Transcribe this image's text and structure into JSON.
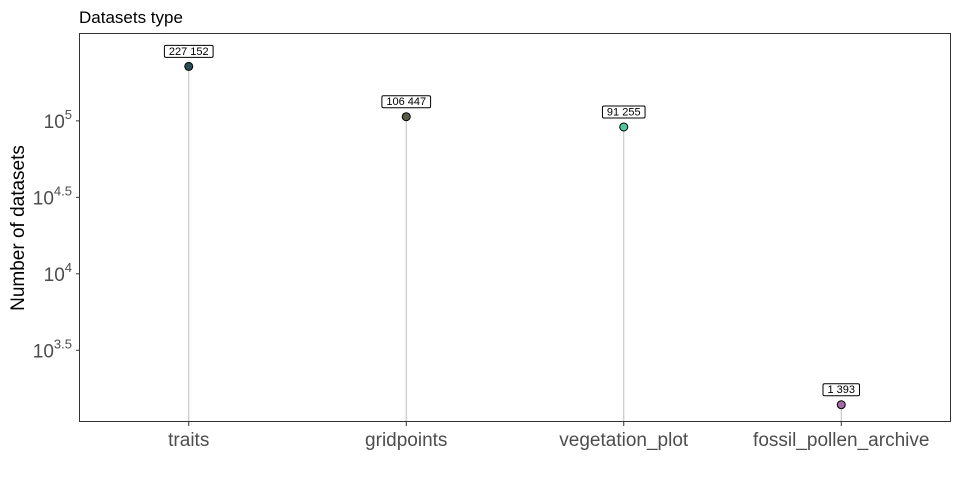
{
  "chart_data": {
    "type": "lollipop",
    "title": "Datasets type",
    "xlabel": "",
    "ylabel": "Number of datasets",
    "y_scale": "log10",
    "ylim": [
      1090,
      370000
    ],
    "y_ticks": [
      {
        "value": 3162.28,
        "base": "10",
        "exp": "3.5"
      },
      {
        "value": 10000,
        "base": "10",
        "exp": "4"
      },
      {
        "value": 31622.78,
        "base": "10",
        "exp": "4.5"
      },
      {
        "value": 100000,
        "base": "10",
        "exp": "5"
      }
    ],
    "categories": [
      "traits",
      "gridpoints",
      "vegetation_plot",
      "fossil_pollen_archive"
    ],
    "values": [
      227152,
      106447,
      91255,
      1393
    ],
    "value_labels": [
      "227 152",
      "106 447",
      "91 255",
      "1 393"
    ],
    "point_colors": [
      "#2b4d57",
      "#5a5a48",
      "#4fc99a",
      "#a16ba6"
    ],
    "grid": false,
    "legend": "none"
  }
}
